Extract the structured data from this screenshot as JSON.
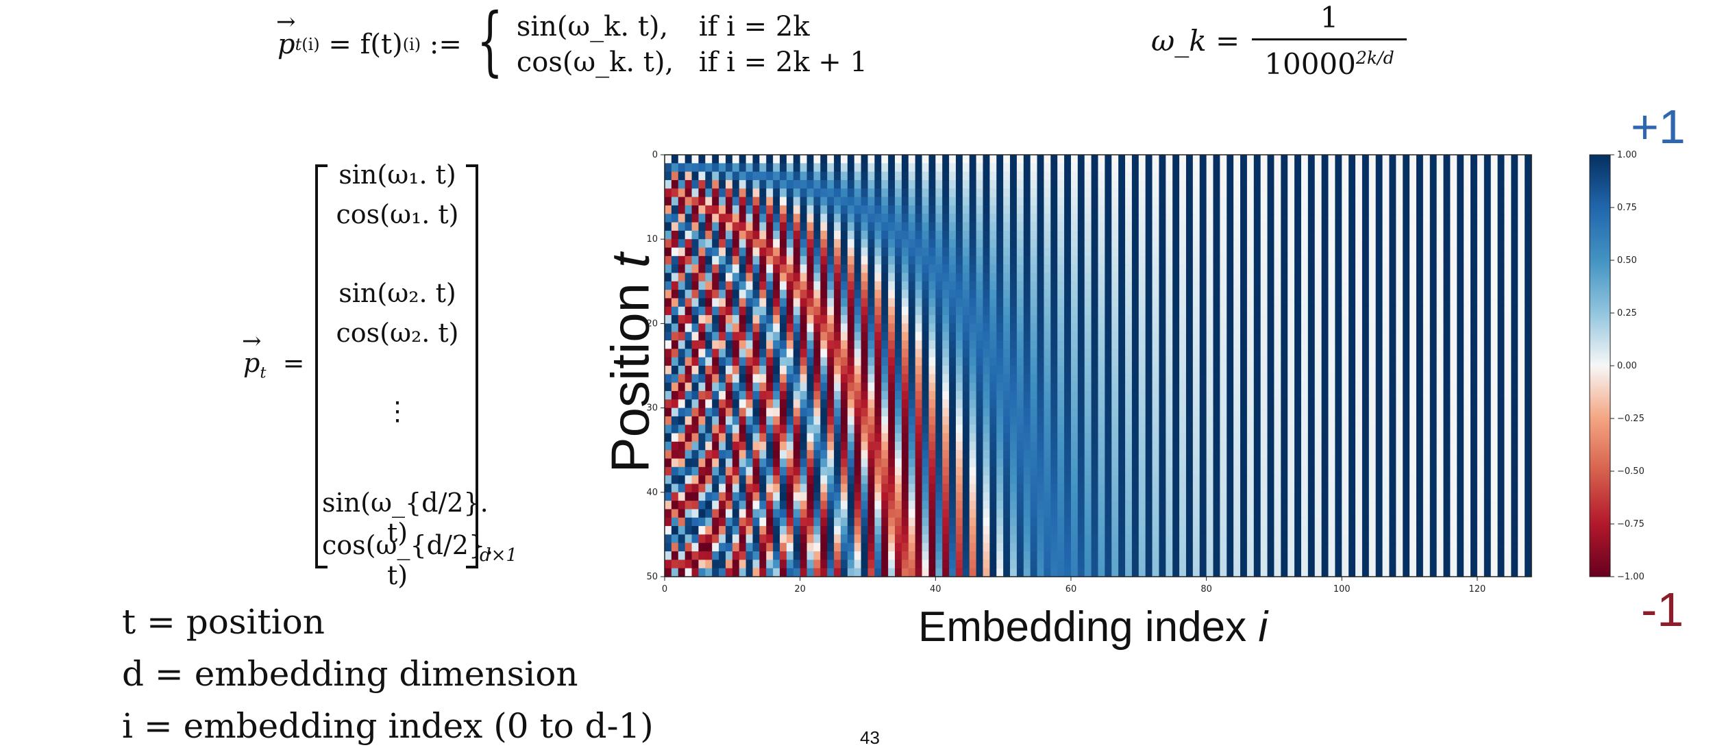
{
  "equations": {
    "top_left": {
      "lhs_var": "p",
      "lhs_sub": "t",
      "lhs_sup": "(i)",
      "middle": "= f(t)",
      "middle_sup": "(i)",
      "assign": ":=",
      "case1_expr": "sin(ω_k. t),",
      "case1_cond": "if i = 2k",
      "case2_expr": "cos(ω_k. t),",
      "case2_cond": "if i = 2k + 1"
    },
    "top_right": {
      "lhs": "ω_k =",
      "numerator": "1",
      "denominator": "10000",
      "denominator_exp": "2k/d"
    },
    "vector": {
      "lhs_var": "p",
      "lhs_sub": "t",
      "eq": "=",
      "rows": [
        "sin(ω₁. t)",
        "cos(ω₁. t)",
        "sin(ω₂. t)",
        "cos(ω₂. t)",
        "⋮",
        "sin(ω_{d/2}. t)",
        "cos(ω_{d/2}. t)"
      ],
      "dims": "d×1"
    }
  },
  "legend_lines": [
    "t = position",
    "d = embedding dimension",
    "i = embedding index (0 to d-1)"
  ],
  "page_number": "43",
  "labels": {
    "x_text": "Embedding index ",
    "x_var": "i",
    "y_text": "Position ",
    "y_var": "t",
    "plus_one": "+1",
    "minus_one": "-1"
  },
  "chart_data": {
    "type": "heatmap",
    "xlabel": "Embedding index i",
    "ylabel": "Position t",
    "x_range": [
      0,
      128
    ],
    "y_range": [
      0,
      50
    ],
    "x_ticks": [
      0,
      20,
      40,
      60,
      80,
      100,
      120
    ],
    "y_ticks": [
      0,
      10,
      20,
      30,
      40,
      50
    ],
    "colorbar_ticks": [
      "1.00",
      "0.75",
      "0.50",
      "0.25",
      "0.00",
      "−0.25",
      "−0.50",
      "−0.75",
      "−1.00"
    ],
    "color_range": [
      -1,
      1
    ],
    "colormap": "RdBu",
    "function": "sin(t/10000^(2k/d)) for even i=2k; cos(t/10000^(2k/d)) for odd i=2k+1, d=128",
    "d": 128,
    "positions": 50,
    "colors": {
      "positive": "#053061",
      "zero": "#f7f7f7",
      "negative": "#67001f"
    }
  }
}
